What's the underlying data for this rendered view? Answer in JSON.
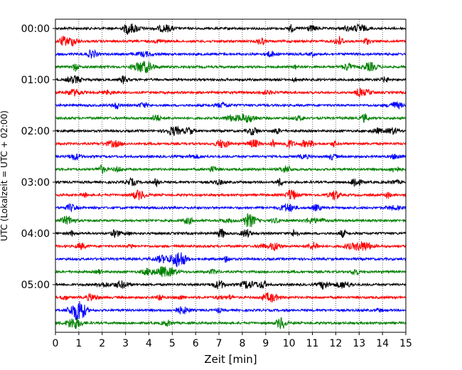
{
  "chart_data": {
    "type": "line",
    "title": "",
    "xlabel": "Zeit  [min]",
    "ylabel": "UTC (Lokalzeit = UTC + 02:00)",
    "xlim": [
      0,
      15
    ],
    "x_ticks": [
      0,
      1,
      2,
      3,
      4,
      5,
      6,
      7,
      8,
      9,
      10,
      11,
      12,
      13,
      14,
      15
    ],
    "x_tick_labels": [
      "0",
      "1",
      "2",
      "3",
      "4",
      "5",
      "6",
      "7",
      "8",
      "9",
      "10",
      "11",
      "12",
      "13",
      "14",
      "15"
    ],
    "y_tick_labels": [
      "00:00",
      "01:00",
      "02:00",
      "03:00",
      "04:00",
      "05:00"
    ],
    "y_tick_rows": [
      0,
      4,
      8,
      12,
      16,
      20
    ],
    "row_interval_min": 15,
    "row_count": 24,
    "color_cycle": [
      "#000000",
      "#ff0000",
      "#0000ff",
      "#008000"
    ],
    "grid": "vertical-dotted",
    "legend": "none"
  }
}
